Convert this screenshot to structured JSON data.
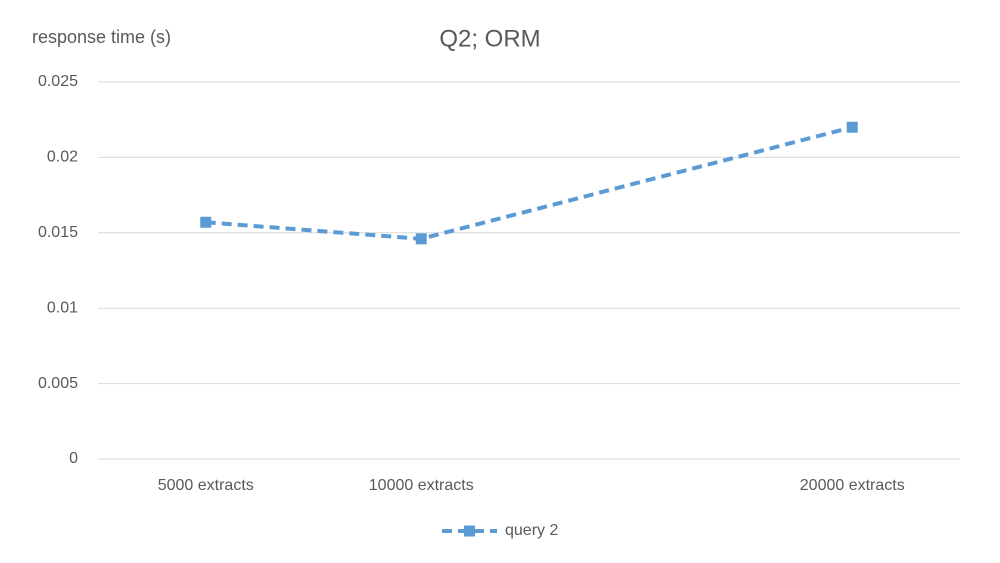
{
  "chart_data": {
    "type": "line",
    "title": "Q2; ORM",
    "y_label": "response time (s)",
    "x": [
      5000,
      10000,
      20000
    ],
    "xlim": [
      2500,
      22500
    ],
    "xticks": [
      {
        "value": 5000,
        "label": "5000 extracts"
      },
      {
        "value": 10000,
        "label": "10000 extracts"
      },
      {
        "value": 20000,
        "label": "20000 extracts"
      }
    ],
    "series": [
      {
        "name": "query 2",
        "color": "#5b9bd5",
        "values": [
          0.0157,
          0.0146,
          0.022
        ]
      }
    ],
    "ylim": [
      0,
      0.025
    ],
    "yticks": [
      0,
      0.005,
      0.01,
      0.015,
      0.02,
      0.025
    ],
    "grid": true,
    "legend": "bottom"
  }
}
